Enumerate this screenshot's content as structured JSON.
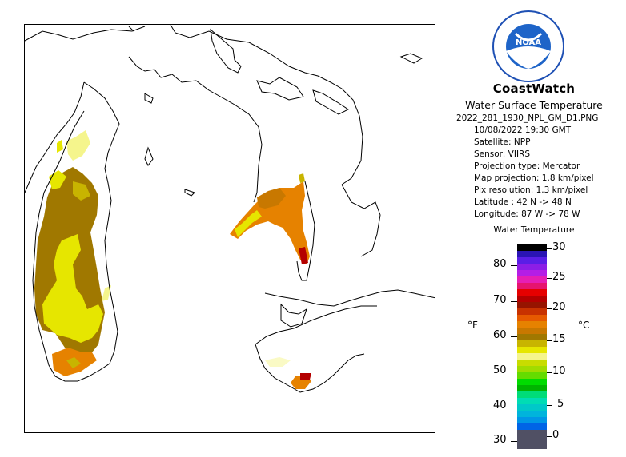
{
  "header": {
    "logo_text": "NOAA",
    "title": "CoastWatch",
    "subtitle": "Water Surface Temperature"
  },
  "metadata": {
    "filename": "2022_281_1930_NPL_GM_D1.PNG",
    "datetime": "10/08/2022    19:30 GMT",
    "satellite": "Satellite: NPP",
    "sensor": "Sensor: VIIRS",
    "projection_type": "Projection type:   Mercator",
    "map_projection": "Map projection: 1.8 km/pixel",
    "pix_resolution": "Pix resolution: 1.3 km/pixel",
    "latitude": "Latitude : 42 N -> 48 N",
    "longitude": "Longitude: 87 W -> 78 W"
  },
  "legend": {
    "title": "Water Temperature",
    "unit_left": "°F",
    "unit_right": "°C",
    "fahrenheit_ticks": [
      "80",
      "70",
      "60",
      "50",
      "40",
      "30"
    ],
    "celsius_ticks": [
      "30",
      "25",
      "20",
      "15",
      "10",
      "5",
      "0"
    ],
    "colors": [
      "#000000",
      "#2a14b4",
      "#5a1ee6",
      "#8c1ee6",
      "#b41ee6",
      "#e61eb4",
      "#e6146e",
      "#e60000",
      "#b40000",
      "#961400",
      "#c83200",
      "#e65a00",
      "#e68200",
      "#c87800",
      "#a07800",
      "#c8b400",
      "#e6e600",
      "#f5f58c",
      "#c8dc00",
      "#a0dc00",
      "#64dc00",
      "#00dc00",
      "#00b400",
      "#00dc78",
      "#00dcb4",
      "#00c8c8",
      "#00b4dc",
      "#0096e6",
      "#0064e6",
      "#505064",
      "#505064",
      "#505064"
    ]
  }
}
